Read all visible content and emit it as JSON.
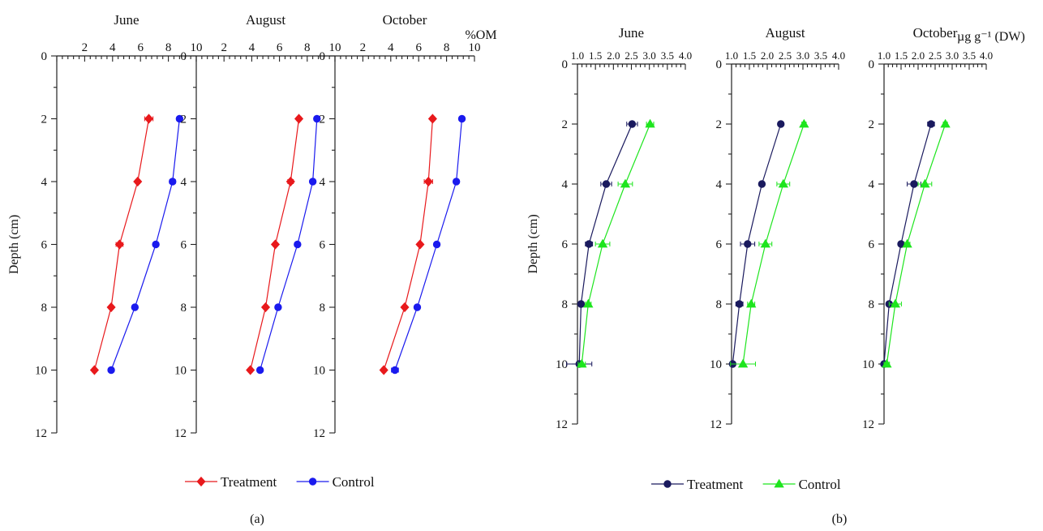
{
  "chart_data": [
    {
      "type": "line",
      "panel_label": "(a)",
      "x_unit_label": "%OM",
      "ylabel": "Depth (cm)",
      "y_ticks": [
        0,
        2,
        4,
        6,
        8,
        10,
        12
      ],
      "x_ticks": [
        2,
        4,
        6,
        8,
        10
      ],
      "xlim": [
        0,
        10
      ],
      "ylim": [
        0,
        12
      ],
      "y_inverted": true,
      "colors": {
        "Treatment": "#e8191c",
        "Control": "#1a1aee"
      },
      "legend": [
        {
          "name": "Treatment",
          "marker": "diamond",
          "color": "#e8191c"
        },
        {
          "name": "Control",
          "marker": "circle",
          "color": "#1a1aee"
        }
      ],
      "subplots": [
        {
          "title": "June",
          "series": [
            {
              "name": "Treatment",
              "depth": [
                2,
                4,
                6,
                8,
                10
              ],
              "values": [
                6.6,
                5.8,
                4.5,
                3.9,
                2.7
              ],
              "errors": [
                0.3,
                0.15,
                0.25,
                0.15,
                0.15
              ]
            },
            {
              "name": "Control",
              "depth": [
                2,
                4,
                6,
                8,
                10
              ],
              "values": [
                8.8,
                8.3,
                7.1,
                5.6,
                3.9
              ],
              "errors": [
                0.15,
                0.2,
                0.15,
                0.1,
                0.1
              ]
            }
          ]
        },
        {
          "title": "August",
          "series": [
            {
              "name": "Treatment",
              "depth": [
                2,
                4,
                6,
                8,
                10
              ],
              "values": [
                7.4,
                6.8,
                5.7,
                5.0,
                3.9
              ],
              "errors": [
                0.15,
                0.2,
                0.15,
                0.15,
                0.15
              ]
            },
            {
              "name": "Control",
              "depth": [
                2,
                4,
                6,
                8,
                10
              ],
              "values": [
                8.7,
                8.4,
                7.3,
                5.9,
                4.6
              ],
              "errors": [
                0.15,
                0.15,
                0.1,
                0.15,
                0.1
              ]
            }
          ]
        },
        {
          "title": "October",
          "series": [
            {
              "name": "Treatment",
              "depth": [
                2,
                4,
                6,
                8,
                10
              ],
              "values": [
                7.0,
                6.7,
                6.1,
                5.0,
                3.5
              ],
              "errors": [
                0.15,
                0.3,
                0.15,
                0.15,
                0.15
              ]
            },
            {
              "name": "Control",
              "depth": [
                2,
                4,
                6,
                8,
                10
              ],
              "values": [
                9.1,
                8.7,
                7.3,
                5.9,
                4.3
              ],
              "errors": [
                0.1,
                0.15,
                0.15,
                0.1,
                0.25
              ]
            }
          ]
        }
      ]
    },
    {
      "type": "line",
      "panel_label": "(b)",
      "x_unit_label": "µg g⁻¹ (DW)",
      "ylabel": "Depth (cm)",
      "y_ticks": [
        0,
        2,
        4,
        6,
        8,
        10,
        12
      ],
      "x_ticks": [
        1.0,
        1.5,
        2.0,
        2.5,
        3.0,
        3.5,
        4.0
      ],
      "x_tick_labels": [
        "1.0",
        "1.5",
        "2.0",
        "2.5",
        "3.0",
        "3.5",
        "4.0"
      ],
      "xlim": [
        1.0,
        4.0
      ],
      "ylim": [
        0,
        12
      ],
      "y_inverted": true,
      "colors": {
        "Treatment": "#1a1a5e",
        "Control": "#1ee51e"
      },
      "legend": [
        {
          "name": "Treatment",
          "marker": "circle",
          "color": "#1a1a5e"
        },
        {
          "name": "Control",
          "marker": "triangle",
          "color": "#1ee51e"
        }
      ],
      "subplots": [
        {
          "title": "June",
          "series": [
            {
              "name": "Treatment",
              "depth": [
                2,
                4,
                6,
                8,
                10
              ],
              "values": [
                2.52,
                1.8,
                1.32,
                1.1,
                1.05
              ],
              "errors": [
                0.15,
                0.15,
                0.1,
                0.06,
                0.35
              ]
            },
            {
              "name": "Control",
              "depth": [
                2,
                4,
                6,
                8,
                10
              ],
              "values": [
                3.02,
                2.33,
                1.7,
                1.3,
                1.12
              ],
              "errors": [
                0.1,
                0.2,
                0.2,
                0.08,
                0.1
              ]
            }
          ]
        },
        {
          "title": "August",
          "series": [
            {
              "name": "Treatment",
              "depth": [
                2,
                4,
                6,
                8,
                10
              ],
              "values": [
                2.38,
                1.85,
                1.45,
                1.22,
                1.03
              ],
              "errors": [
                0.06,
                0.06,
                0.2,
                0.1,
                0.06
              ]
            },
            {
              "name": "Control",
              "depth": [
                2,
                4,
                6,
                8,
                10
              ],
              "values": [
                3.03,
                2.45,
                1.95,
                1.55,
                1.32
              ],
              "errors": [
                0.06,
                0.18,
                0.18,
                0.1,
                0.35
              ]
            }
          ]
        },
        {
          "title": "October",
          "series": [
            {
              "name": "Treatment",
              "depth": [
                2,
                4,
                6,
                8,
                10
              ],
              "values": [
                2.38,
                1.88,
                1.5,
                1.15,
                1.0
              ],
              "errors": [
                0.1,
                0.2,
                0.06,
                0.06,
                0.03
              ]
            },
            {
              "name": "Control",
              "depth": [
                2,
                4,
                6,
                8,
                10
              ],
              "values": [
                2.8,
                2.2,
                1.68,
                1.33,
                1.08
              ],
              "errors": [
                0.06,
                0.2,
                0.08,
                0.18,
                0.08
              ]
            }
          ]
        }
      ]
    }
  ]
}
